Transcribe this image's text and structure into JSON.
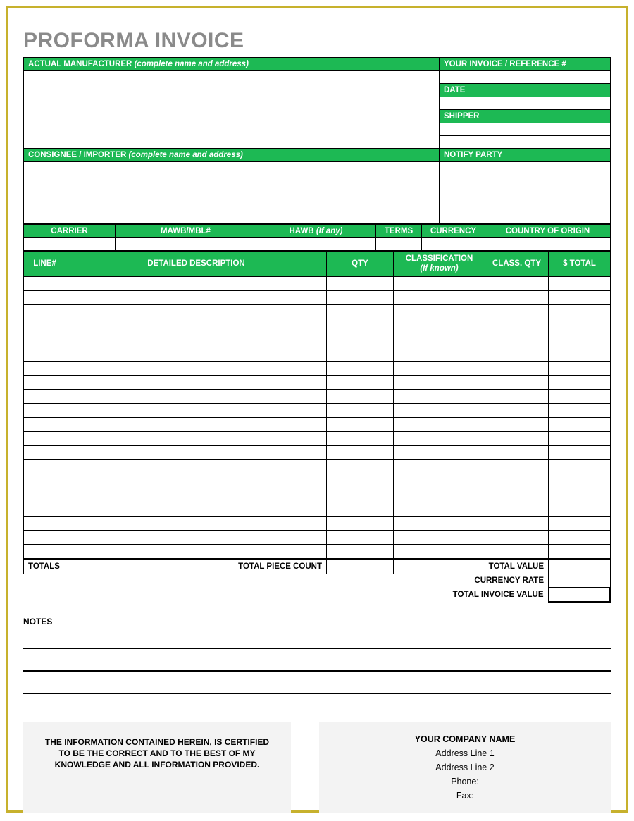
{
  "title": "PROFORMA INVOICE",
  "colors": {
    "accent": "#1db954",
    "frame": "#c7b12d",
    "title": "#8a8a8a",
    "footerBg": "#f3f3f3"
  },
  "headers": {
    "manufacturer": "ACTUAL MANUFACTURER",
    "manufacturer_note": "(complete name and address)",
    "invoiceRef": "YOUR INVOICE / REFERENCE #",
    "date": "DATE",
    "shipper": "SHIPPER",
    "consignee": "CONSIGNEE / IMPORTER",
    "consignee_note": "(complete name and address)",
    "notify": "NOTIFY PARTY"
  },
  "shipCols": {
    "carrier": "CARRIER",
    "mawb": "MAWB/MBL#",
    "hawb": "HAWB",
    "hawb_note": "(If any)",
    "terms": "TERMS",
    "currency": "CURRENCY",
    "origin": "COUNTRY OF ORIGIN"
  },
  "itemCols": {
    "line": "LINE#",
    "desc": "DETAILED DESCRIPTION",
    "qty": "QTY",
    "classif": "CLASSIFICATION",
    "classif_note": "(If known)",
    "classqty": "CLASS. QTY",
    "total": "$ TOTAL"
  },
  "lineRows": 20,
  "totals": {
    "totals": "TOTALS",
    "pieceCount": "TOTAL PIECE COUNT",
    "totalValue": "TOTAL VALUE",
    "currencyRate": "CURRENCY RATE",
    "invoiceValue": "TOTAL INVOICE VALUE"
  },
  "notesLabel": "NOTES",
  "certification": "THE INFORMATION CONTAINED HEREIN, IS CERTIFIED TO BE THE CORRECT AND TO THE BEST OF MY KNOWLEDGE AND ALL INFORMATION PROVIDED.",
  "company": {
    "name": "YOUR COMPANY NAME",
    "addr1": "Address Line 1",
    "addr2": "Address Line 2",
    "phone": "Phone:",
    "fax": "Fax:"
  }
}
